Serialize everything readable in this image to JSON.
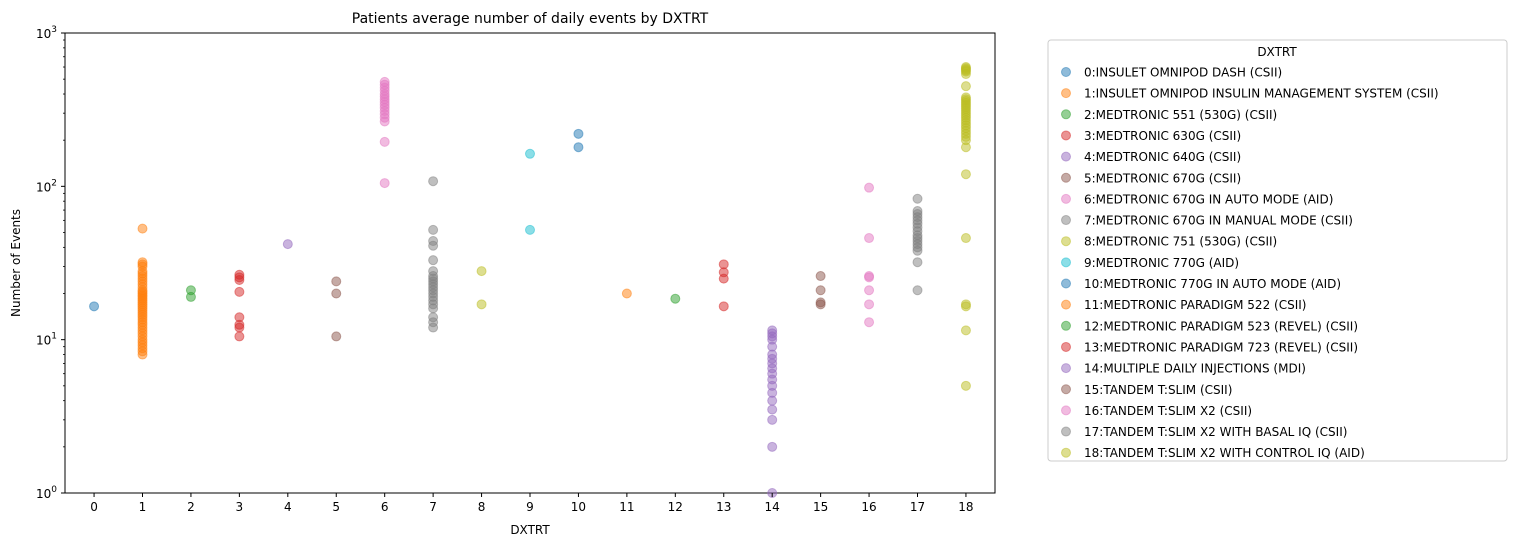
{
  "chart_data": {
    "type": "scatter",
    "title": "Patients average number of daily events by DXTRT",
    "xlabel": "DXTRT",
    "ylabel": "Number of Events",
    "x_ticks": [
      "0",
      "1",
      "2",
      "3",
      "4",
      "5",
      "6",
      "7",
      "8",
      "9",
      "10",
      "11",
      "12",
      "13",
      "14",
      "15",
      "16",
      "17",
      "18"
    ],
    "xlim": [
      -0.6,
      18.6
    ],
    "y_scale": "log",
    "ylim": [
      1,
      1000
    ],
    "y_ticks": [
      {
        "value": 1,
        "base": "10",
        "exp": "0"
      },
      {
        "value": 10,
        "base": "10",
        "exp": "1"
      },
      {
        "value": 100,
        "base": "10",
        "exp": "2"
      },
      {
        "value": 1000,
        "base": "10",
        "exp": "3"
      }
    ],
    "grid": false,
    "legend_title": "DXTRT",
    "legend_position": "outside right",
    "series": [
      {
        "name": "0:INSULET OMNIPOD DASH (CSII)",
        "color": "#1f77b4",
        "x": 0,
        "values": [
          16.5
        ]
      },
      {
        "name": "1:INSULET OMNIPOD INSULIN MANAGEMENT SYSTEM (CSII)",
        "color": "#ff7f0e",
        "x": 1,
        "values": [
          53,
          32,
          31,
          30,
          28,
          27,
          26,
          25,
          24,
          23,
          22,
          21,
          20.5,
          20,
          19.5,
          19,
          18.5,
          18,
          17.5,
          17,
          16.5,
          16,
          15.5,
          15,
          14.5,
          14,
          13.5,
          13,
          12.5,
          12,
          11.5,
          11,
          10.5,
          10,
          9.6,
          9.2,
          8.8,
          8.4,
          8
        ]
      },
      {
        "name": "2:MEDTRONIC 551 (530G) (CSII)",
        "color": "#2ca02c",
        "x": 2,
        "values": [
          21,
          19
        ]
      },
      {
        "name": "3:MEDTRONIC 630G (CSII)",
        "color": "#d62728",
        "x": 3,
        "values": [
          26.5,
          25.5,
          24.5,
          20.5,
          14,
          12.5,
          12,
          10.5
        ]
      },
      {
        "name": "4:MEDTRONIC 640G (CSII)",
        "color": "#9467bd",
        "x": 4,
        "values": [
          42
        ]
      },
      {
        "name": "5:MEDTRONIC 670G (CSII)",
        "color": "#8c564b",
        "x": 5,
        "values": [
          24,
          20,
          10.5
        ]
      },
      {
        "name": "6:MEDTRONIC 670G IN AUTO MODE (AID)",
        "color": "#e377c2",
        "x": 6,
        "values": [
          480,
          460,
          440,
          420,
          400,
          385,
          370,
          355,
          340,
          325,
          310,
          295,
          280,
          265,
          195,
          105
        ]
      },
      {
        "name": "7:MEDTRONIC 670G IN MANUAL MODE (CSII)",
        "color": "#7f7f7f",
        "x": 7,
        "values": [
          108,
          52,
          44,
          41,
          33,
          28,
          26,
          25,
          24,
          23,
          22,
          21,
          20,
          19,
          18,
          17,
          16,
          14,
          13,
          12
        ]
      },
      {
        "name": "8:MEDTRONIC 751 (530G) (CSII)",
        "color": "#bcbd22",
        "x": 8,
        "values": [
          28,
          17
        ]
      },
      {
        "name": "9:MEDTRONIC 770G (AID)",
        "color": "#17becf",
        "x": 9,
        "values": [
          163,
          52
        ]
      },
      {
        "name": "10:MEDTRONIC 770G IN AUTO MODE (AID)",
        "color": "#1f77b4",
        "x": 10,
        "values": [
          220,
          180
        ]
      },
      {
        "name": "11:MEDTRONIC PARADIGM 522 (CSII)",
        "color": "#ff7f0e",
        "x": 11,
        "values": [
          20
        ]
      },
      {
        "name": "12:MEDTRONIC PARADIGM 523 (REVEL) (CSII)",
        "color": "#2ca02c",
        "x": 12,
        "values": [
          18.5
        ]
      },
      {
        "name": "13:MEDTRONIC PARADIGM 723 (REVEL) (CSII)",
        "color": "#d62728",
        "x": 13,
        "values": [
          31,
          27.5,
          25,
          16.5
        ]
      },
      {
        "name": "14:MULTIPLE DAILY INJECTIONS (MDI)",
        "color": "#9467bd",
        "x": 14,
        "values": [
          11.5,
          11,
          10.5,
          10,
          9,
          8,
          7.5,
          7,
          6.5,
          6,
          5.5,
          5,
          4.5,
          4,
          3.5,
          3,
          2,
          1
        ]
      },
      {
        "name": "15:TANDEM T:SLIM (CSII)",
        "color": "#8c564b",
        "x": 15,
        "values": [
          26,
          21,
          17.5,
          17
        ]
      },
      {
        "name": "16:TANDEM T:SLIM X2 (CSII)",
        "color": "#e377c2",
        "x": 16,
        "values": [
          98,
          46,
          26,
          25.5,
          21,
          17,
          13
        ]
      },
      {
        "name": "17:TANDEM T:SLIM X2 WITH BASAL IQ (CSII)",
        "color": "#7f7f7f",
        "x": 17,
        "values": [
          83,
          69,
          66,
          63,
          60,
          57,
          54,
          51,
          48,
          46,
          44,
          42,
          40,
          38,
          32,
          21
        ]
      },
      {
        "name": "18:TANDEM T:SLIM X2 WITH CONTROL IQ (AID)",
        "color": "#bcbd22",
        "x": 18,
        "values": [
          600,
          590,
          580,
          570,
          560,
          540,
          450,
          380,
          370,
          360,
          350,
          340,
          330,
          320,
          310,
          300,
          290,
          280,
          270,
          260,
          250,
          240,
          230,
          220,
          210,
          200,
          180,
          120,
          46,
          17,
          16.5,
          11.5,
          5
        ]
      }
    ]
  }
}
